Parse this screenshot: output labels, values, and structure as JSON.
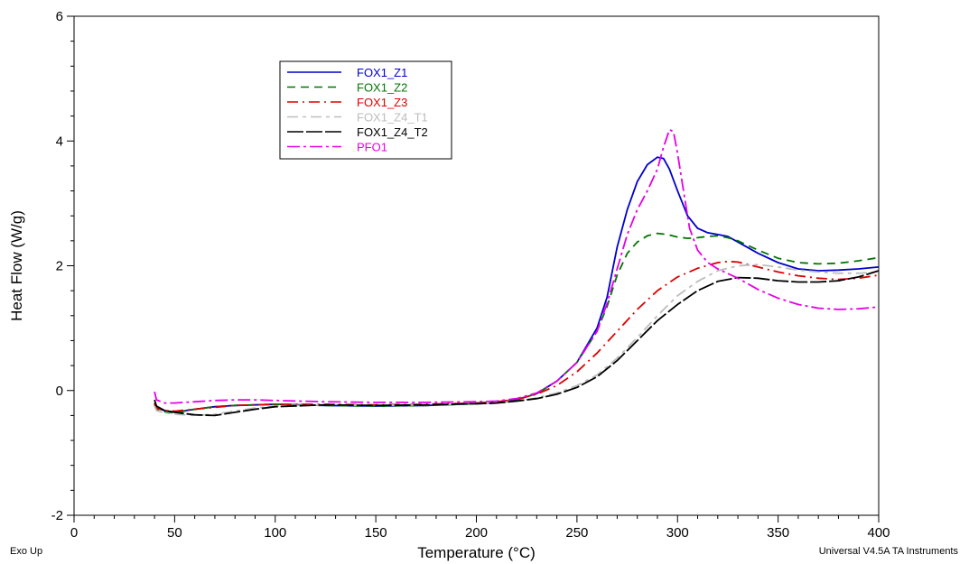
{
  "footer": {
    "left_note": "Exo Up",
    "right_note": "Universal V4.5A TA Instruments"
  },
  "chart_data": {
    "type": "line",
    "title": "",
    "xlabel": "Temperature (°C)",
    "ylabel": "Heat Flow (W/g)",
    "xlim": [
      0,
      400
    ],
    "ylim": [
      -2,
      6
    ],
    "x_ticks": [
      0,
      50,
      100,
      150,
      200,
      250,
      300,
      350,
      400
    ],
    "y_ticks": [
      -2,
      0,
      2,
      4,
      6
    ],
    "x_minor_step": 10,
    "y_minor_step": 0.4,
    "grid": false,
    "legend_position": "top-left-center",
    "series": [
      {
        "name": "FOX1_Z1",
        "color": "#0000cc",
        "dash": "",
        "points": [
          [
            40,
            -0.2
          ],
          [
            41,
            -0.28
          ],
          [
            45,
            -0.32
          ],
          [
            50,
            -0.35
          ],
          [
            60,
            -0.3
          ],
          [
            70,
            -0.26
          ],
          [
            80,
            -0.24
          ],
          [
            100,
            -0.22
          ],
          [
            125,
            -0.24
          ],
          [
            150,
            -0.25
          ],
          [
            175,
            -0.24
          ],
          [
            200,
            -0.21
          ],
          [
            210,
            -0.2
          ],
          [
            220,
            -0.15
          ],
          [
            230,
            -0.05
          ],
          [
            240,
            0.15
          ],
          [
            250,
            0.45
          ],
          [
            260,
            1.0
          ],
          [
            265,
            1.5
          ],
          [
            270,
            2.3
          ],
          [
            275,
            2.9
          ],
          [
            280,
            3.35
          ],
          [
            285,
            3.62
          ],
          [
            290,
            3.74
          ],
          [
            293,
            3.72
          ],
          [
            296,
            3.55
          ],
          [
            300,
            3.2
          ],
          [
            305,
            2.8
          ],
          [
            310,
            2.6
          ],
          [
            315,
            2.53
          ],
          [
            320,
            2.5
          ],
          [
            325,
            2.47
          ],
          [
            330,
            2.38
          ],
          [
            340,
            2.2
          ],
          [
            350,
            2.05
          ],
          [
            360,
            1.95
          ],
          [
            370,
            1.92
          ],
          [
            380,
            1.93
          ],
          [
            390,
            1.95
          ],
          [
            400,
            1.98
          ]
        ]
      },
      {
        "name": "FOX1_Z2",
        "color": "#007700",
        "dash": "9,6",
        "points": [
          [
            40,
            -0.22
          ],
          [
            41,
            -0.3
          ],
          [
            45,
            -0.34
          ],
          [
            50,
            -0.36
          ],
          [
            60,
            -0.3
          ],
          [
            70,
            -0.26
          ],
          [
            80,
            -0.24
          ],
          [
            100,
            -0.22
          ],
          [
            125,
            -0.24
          ],
          [
            150,
            -0.25
          ],
          [
            175,
            -0.24
          ],
          [
            200,
            -0.21
          ],
          [
            210,
            -0.2
          ],
          [
            220,
            -0.15
          ],
          [
            230,
            -0.05
          ],
          [
            240,
            0.15
          ],
          [
            250,
            0.45
          ],
          [
            260,
            0.95
          ],
          [
            265,
            1.35
          ],
          [
            270,
            1.85
          ],
          [
            275,
            2.2
          ],
          [
            280,
            2.38
          ],
          [
            285,
            2.48
          ],
          [
            290,
            2.52
          ],
          [
            295,
            2.5
          ],
          [
            300,
            2.46
          ],
          [
            305,
            2.44
          ],
          [
            310,
            2.45
          ],
          [
            315,
            2.47
          ],
          [
            320,
            2.48
          ],
          [
            325,
            2.45
          ],
          [
            330,
            2.4
          ],
          [
            340,
            2.25
          ],
          [
            350,
            2.12
          ],
          [
            360,
            2.05
          ],
          [
            370,
            2.03
          ],
          [
            380,
            2.04
          ],
          [
            390,
            2.08
          ],
          [
            400,
            2.13
          ]
        ]
      },
      {
        "name": "FOX1_Z3",
        "color": "#dd0000",
        "dash": "12,5,2,5",
        "points": [
          [
            40,
            -0.2
          ],
          [
            41,
            -0.28
          ],
          [
            45,
            -0.32
          ],
          [
            50,
            -0.33
          ],
          [
            60,
            -0.3
          ],
          [
            70,
            -0.27
          ],
          [
            80,
            -0.24
          ],
          [
            100,
            -0.22
          ],
          [
            125,
            -0.22
          ],
          [
            150,
            -0.23
          ],
          [
            175,
            -0.22
          ],
          [
            200,
            -0.2
          ],
          [
            210,
            -0.18
          ],
          [
            220,
            -0.14
          ],
          [
            230,
            -0.06
          ],
          [
            240,
            0.08
          ],
          [
            250,
            0.3
          ],
          [
            260,
            0.6
          ],
          [
            270,
            0.95
          ],
          [
            280,
            1.3
          ],
          [
            290,
            1.6
          ],
          [
            300,
            1.82
          ],
          [
            310,
            1.96
          ],
          [
            320,
            2.05
          ],
          [
            325,
            2.07
          ],
          [
            330,
            2.06
          ],
          [
            340,
            1.98
          ],
          [
            350,
            1.9
          ],
          [
            360,
            1.84
          ],
          [
            370,
            1.8
          ],
          [
            380,
            1.78
          ],
          [
            390,
            1.8
          ],
          [
            400,
            1.85
          ]
        ]
      },
      {
        "name": "FOX1_Z4_T1",
        "color": "#bdbdbd",
        "dash": "12,5,4,5",
        "points": [
          [
            40,
            -0.25
          ],
          [
            41,
            -0.32
          ],
          [
            45,
            -0.36
          ],
          [
            50,
            -0.38
          ],
          [
            60,
            -0.4
          ],
          [
            70,
            -0.38
          ],
          [
            80,
            -0.33
          ],
          [
            90,
            -0.28
          ],
          [
            100,
            -0.25
          ],
          [
            125,
            -0.23
          ],
          [
            150,
            -0.24
          ],
          [
            175,
            -0.23
          ],
          [
            200,
            -0.21
          ],
          [
            210,
            -0.2
          ],
          [
            220,
            -0.17
          ],
          [
            230,
            -0.12
          ],
          [
            240,
            -0.04
          ],
          [
            250,
            0.08
          ],
          [
            260,
            0.25
          ],
          [
            270,
            0.52
          ],
          [
            280,
            0.85
          ],
          [
            290,
            1.2
          ],
          [
            300,
            1.52
          ],
          [
            310,
            1.75
          ],
          [
            320,
            1.92
          ],
          [
            330,
            2.0
          ],
          [
            340,
            2.02
          ],
          [
            350,
            1.98
          ],
          [
            360,
            1.93
          ],
          [
            370,
            1.9
          ],
          [
            380,
            1.88
          ],
          [
            390,
            1.88
          ],
          [
            400,
            1.9
          ]
        ]
      },
      {
        "name": "FOX1_Z4_T2",
        "color": "#000000",
        "dash": "18,3",
        "points": [
          [
            40,
            -0.15
          ],
          [
            41,
            -0.25
          ],
          [
            45,
            -0.32
          ],
          [
            50,
            -0.35
          ],
          [
            60,
            -0.39
          ],
          [
            70,
            -0.4
          ],
          [
            80,
            -0.35
          ],
          [
            90,
            -0.3
          ],
          [
            100,
            -0.26
          ],
          [
            125,
            -0.23
          ],
          [
            150,
            -0.24
          ],
          [
            175,
            -0.23
          ],
          [
            200,
            -0.21
          ],
          [
            210,
            -0.2
          ],
          [
            220,
            -0.17
          ],
          [
            230,
            -0.13
          ],
          [
            240,
            -0.06
          ],
          [
            250,
            0.05
          ],
          [
            260,
            0.22
          ],
          [
            270,
            0.48
          ],
          [
            280,
            0.8
          ],
          [
            290,
            1.12
          ],
          [
            300,
            1.38
          ],
          [
            310,
            1.6
          ],
          [
            320,
            1.75
          ],
          [
            330,
            1.81
          ],
          [
            340,
            1.8
          ],
          [
            350,
            1.76
          ],
          [
            360,
            1.74
          ],
          [
            370,
            1.74
          ],
          [
            380,
            1.76
          ],
          [
            390,
            1.82
          ],
          [
            400,
            1.92
          ]
        ]
      },
      {
        "name": "PFO1",
        "color": "#e600e6",
        "dash": "14,4,3,4",
        "points": [
          [
            40,
            -0.02
          ],
          [
            41,
            -0.15
          ],
          [
            45,
            -0.2
          ],
          [
            50,
            -0.2
          ],
          [
            60,
            -0.18
          ],
          [
            70,
            -0.16
          ],
          [
            80,
            -0.15
          ],
          [
            90,
            -0.15
          ],
          [
            100,
            -0.16
          ],
          [
            125,
            -0.18
          ],
          [
            150,
            -0.19
          ],
          [
            175,
            -0.19
          ],
          [
            200,
            -0.18
          ],
          [
            210,
            -0.17
          ],
          [
            220,
            -0.13
          ],
          [
            230,
            -0.04
          ],
          [
            240,
            0.15
          ],
          [
            250,
            0.45
          ],
          [
            260,
            0.95
          ],
          [
            265,
            1.4
          ],
          [
            270,
            1.95
          ],
          [
            275,
            2.5
          ],
          [
            280,
            2.9
          ],
          [
            285,
            3.2
          ],
          [
            290,
            3.55
          ],
          [
            293,
            3.9
          ],
          [
            296,
            4.18
          ],
          [
            298,
            4.15
          ],
          [
            300,
            3.8
          ],
          [
            303,
            3.2
          ],
          [
            306,
            2.6
          ],
          [
            310,
            2.25
          ],
          [
            315,
            2.05
          ],
          [
            320,
            1.95
          ],
          [
            330,
            1.8
          ],
          [
            340,
            1.62
          ],
          [
            350,
            1.48
          ],
          [
            360,
            1.38
          ],
          [
            370,
            1.32
          ],
          [
            380,
            1.3
          ],
          [
            390,
            1.31
          ],
          [
            400,
            1.34
          ]
        ]
      }
    ]
  }
}
